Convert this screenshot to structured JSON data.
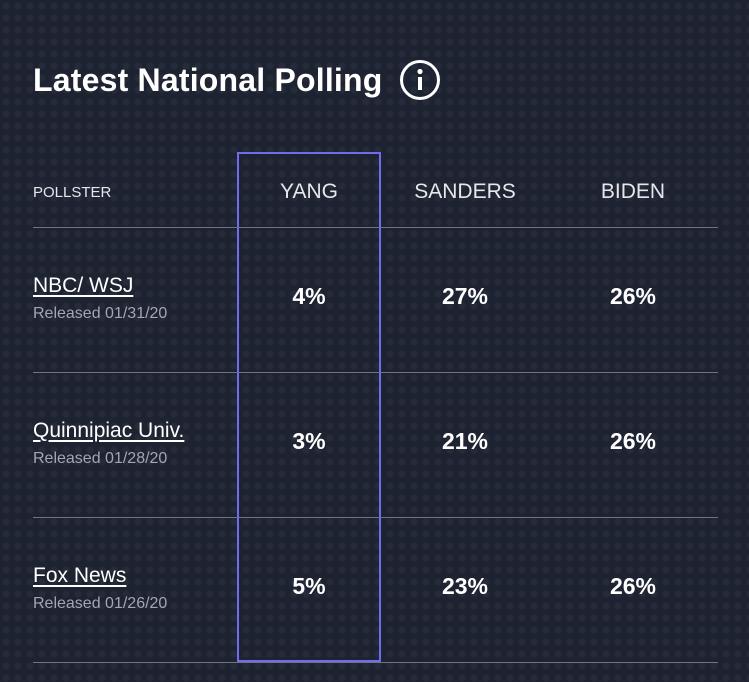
{
  "title": "Latest National Polling",
  "icons": {
    "info": "info-icon"
  },
  "colors": {
    "background": "#1e2332",
    "highlight_border": "#6f6cf0",
    "divider": "#707584",
    "secondary_text": "#a3a7b3"
  },
  "table": {
    "columns": [
      "POLLSTER",
      "YANG",
      "SANDERS",
      "BIDEN"
    ],
    "highlighted_column": "YANG",
    "rows": [
      {
        "pollster": "NBC/ WSJ",
        "released": "Released 01/31/20",
        "yang": "4%",
        "sanders": "27%",
        "biden": "26%"
      },
      {
        "pollster": "Quinnipiac Univ.",
        "released": "Released 01/28/20",
        "yang": "3%",
        "sanders": "21%",
        "biden": "26%"
      },
      {
        "pollster": "Fox News",
        "released": "Released 01/26/20",
        "yang": "5%",
        "sanders": "23%",
        "biden": "26%"
      }
    ]
  }
}
